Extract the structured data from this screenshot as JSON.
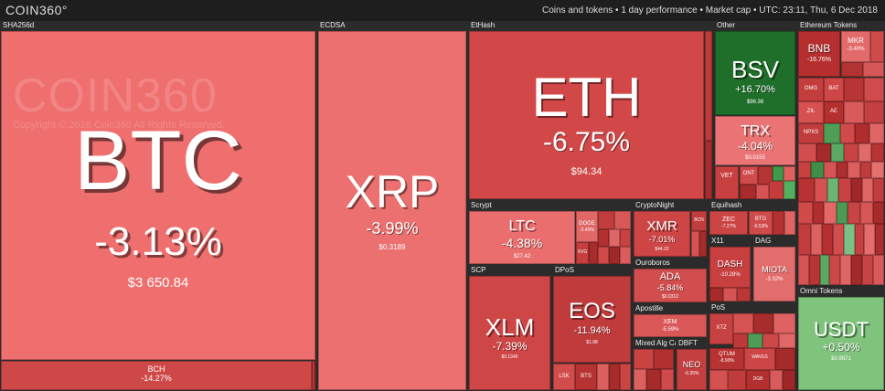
{
  "header": {
    "logo": "COIN360°",
    "info": "Coins and tokens  •  1 day performance  •  Market cap  •  UTC: 23:11, Thu, 6 Dec 2018"
  },
  "watermark": {
    "logo": "COIN360",
    "copyright": "Copyright © 2018 Coin360 All Rights Reserved."
  },
  "groups": {
    "sha256d": "SHA256d",
    "ecdsa": "ECDSA",
    "ethash": "EtHash",
    "other": "Other",
    "ethereum_tokens": "Ethereum Tokens",
    "scrypt": "Scrypt",
    "cryptonight": "CryptoNight",
    "equihash": "Equihash",
    "x11": "X11",
    "dag": "DAG",
    "scp": "SCP",
    "dpos": "DPoS",
    "ouroboros": "Ouroboros",
    "apostille": "Apostille",
    "pos": "PoS",
    "mixed": "Mixed Alg Cat",
    "dbft": "DBFT",
    "omni_tokens": "Omni Tokens"
  },
  "coins": {
    "btc": {
      "symbol": "BTC",
      "change": "-3.13%",
      "price": "$3 650.84"
    },
    "bch": {
      "symbol": "BCH",
      "change": "-14.27%"
    },
    "xrp": {
      "symbol": "XRP",
      "change": "-3.99%",
      "price": "$0.3189"
    },
    "eth": {
      "symbol": "ETH",
      "change": "-6.75%",
      "price": "$94.34"
    },
    "bsv": {
      "symbol": "BSV",
      "change": "+16.70%",
      "price": "$96.38"
    },
    "trx": {
      "symbol": "TRX",
      "change": "-4.04%",
      "price": "$0.0155"
    },
    "vet": {
      "symbol": "VET"
    },
    "ont": {
      "symbol": "ONT"
    },
    "bnb": {
      "symbol": "BNB",
      "change": "-16.76%"
    },
    "mkr": {
      "symbol": "MKR",
      "change": "-3.40%"
    },
    "omg": {
      "symbol": "OMG"
    },
    "bat": {
      "symbol": "BAT"
    },
    "zil": {
      "symbol": "ZIL"
    },
    "ae": {
      "symbol": "AE"
    },
    "npxs": {
      "symbol": "NPXS"
    },
    "ltc": {
      "symbol": "LTC",
      "change": "-4.38%",
      "price": "$27.42"
    },
    "doge": {
      "symbol": "DOGE",
      "change": "-2.40%"
    },
    "xvg": {
      "symbol": "XVG"
    },
    "xmr": {
      "symbol": "XMR",
      "change": "-7.01%",
      "price": "$44.22"
    },
    "bcn": {
      "symbol": "BCN"
    },
    "zec": {
      "symbol": "ZEC",
      "change": "-7.27%"
    },
    "btg": {
      "symbol": "BTG",
      "change": "-6.53%"
    },
    "dash": {
      "symbol": "DASH",
      "change": "-10.28%"
    },
    "miota": {
      "symbol": "MIOTA",
      "change": "-3.32%"
    },
    "ada": {
      "symbol": "ADA",
      "change": "-5.84%",
      "price": "$0.0312"
    },
    "xlm": {
      "symbol": "XLM",
      "change": "-7.39%",
      "price": "$0.1345"
    },
    "eos": {
      "symbol": "EOS",
      "change": "-11.94%",
      "price": "$1.98"
    },
    "lsk": {
      "symbol": "LSK"
    },
    "bts": {
      "symbol": "BTS"
    },
    "xem": {
      "symbol": "XEM",
      "change": "-5.59%"
    },
    "xtz": {
      "symbol": "XTZ"
    },
    "qtum": {
      "symbol": "QTUM",
      "change": "-8.90%"
    },
    "waves": {
      "symbol": "WAVES"
    },
    "dgb": {
      "symbol": "DGB"
    },
    "neo": {
      "symbol": "NEO",
      "change": "-6.35%"
    },
    "usdt": {
      "symbol": "USDT",
      "change": "+0.50%",
      "price": "$0.9971"
    }
  }
}
